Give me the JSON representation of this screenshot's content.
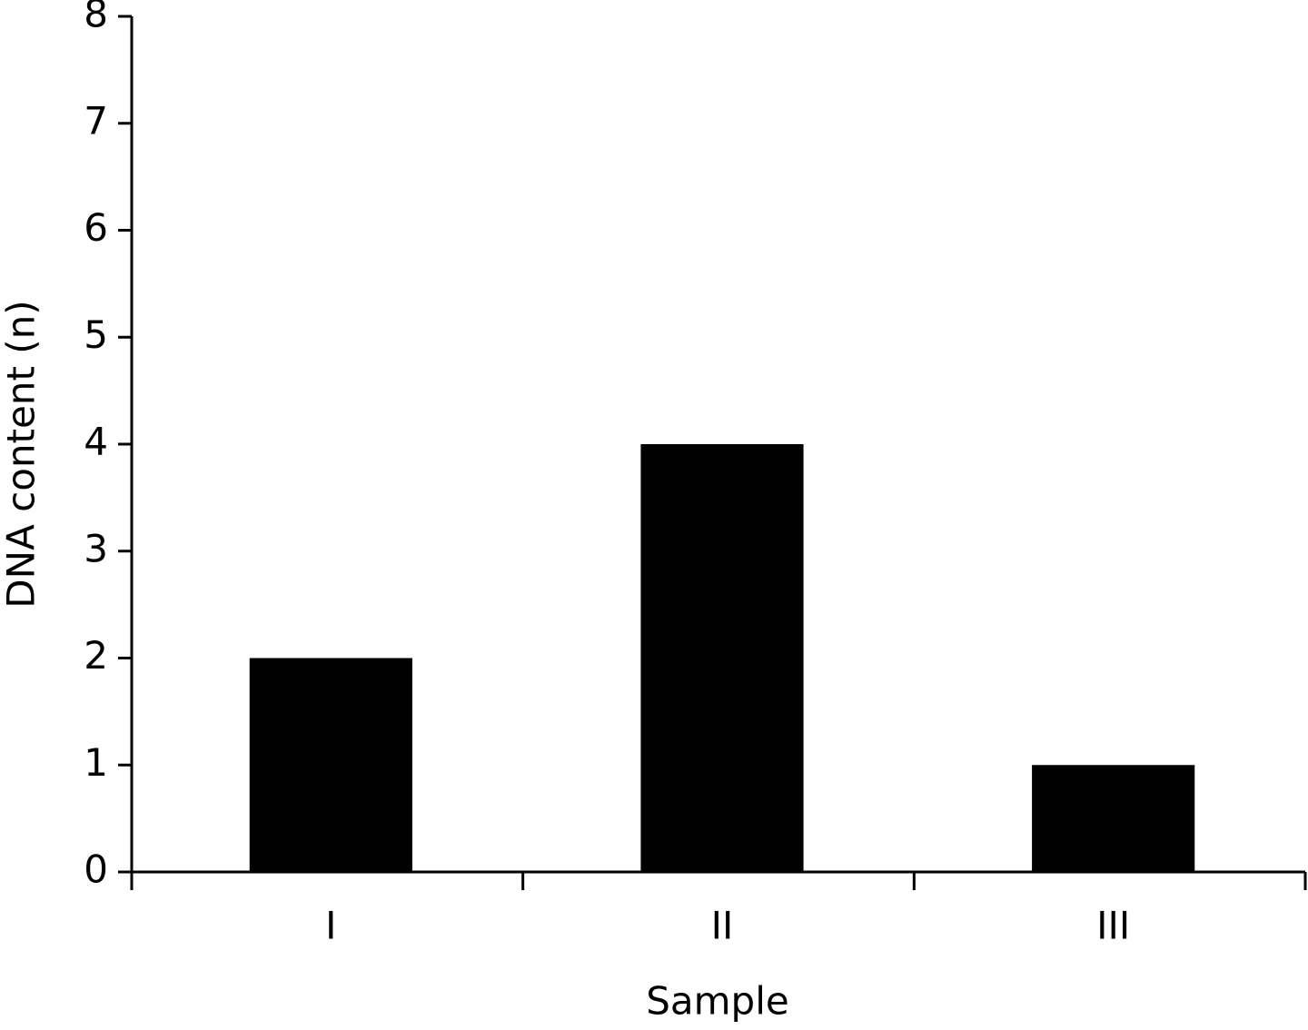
{
  "chart_data": {
    "type": "bar",
    "x_label": "Sample",
    "y_label": "DNA content (n)",
    "categories": [
      "I",
      "II",
      "III"
    ],
    "values": [
      2,
      4,
      1
    ],
    "color": "#000000",
    "ylim": [
      0,
      8
    ],
    "yticks": [
      0,
      1,
      2,
      3,
      4,
      5,
      6,
      7,
      8
    ],
    "grid": false
  }
}
